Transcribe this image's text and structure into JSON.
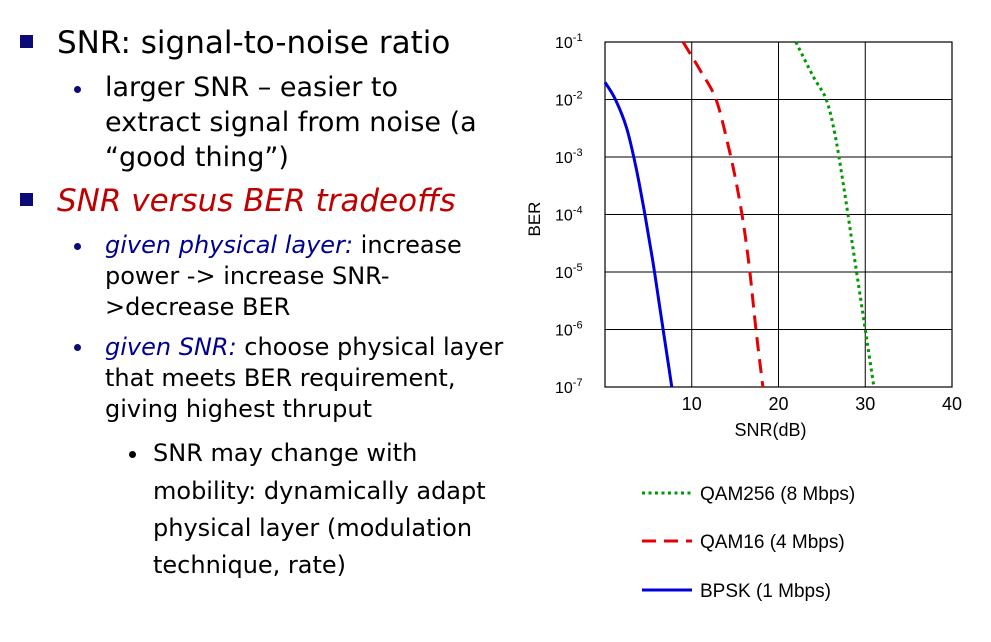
{
  "bullets": {
    "b1": {
      "text": "SNR: signal-to-noise ratio"
    },
    "b1_sub": {
      "line1": "larger SNR – easier to",
      "line2": "extract signal from noise (a",
      "line3": "“good thing”)"
    },
    "b2": {
      "text": "SNR versus BER tradeoffs"
    },
    "b2_sub1": {
      "lead": "given physical layer:",
      "line1_rest": " increase",
      "line2": "power -> increase SNR-",
      "line3": ">decrease BER"
    },
    "b2_sub2": {
      "lead": "given SNR:",
      "line1_rest": " choose physical layer",
      "line2": "that meets BER requirement,",
      "line3": "giving highest thruput"
    },
    "b2_sub2_sub": {
      "line1": "SNR may change with",
      "line2": "mobility: dynamically adapt",
      "line3": "physical layer (modulation",
      "line4": "technique, rate)"
    }
  },
  "chart_data": {
    "type": "line",
    "title": "",
    "xlabel": "SNR(dB)",
    "ylabel": "BER",
    "x_ticks": [
      "10",
      "20",
      "30",
      "40"
    ],
    "y_ticks": [
      {
        "base": "10",
        "exp": "-1"
      },
      {
        "base": "10",
        "exp": "-2"
      },
      {
        "base": "10",
        "exp": "-3"
      },
      {
        "base": "10",
        "exp": "-4"
      },
      {
        "base": "10",
        "exp": "-5"
      },
      {
        "base": "10",
        "exp": "-6"
      },
      {
        "base": "10",
        "exp": "-7"
      }
    ],
    "xlim": [
      0,
      40
    ],
    "ylim_log10": [
      -7,
      -1
    ],
    "grid": true,
    "legend_position": "bottom",
    "series": [
      {
        "name": "QAM256 (8 Mbps)",
        "color": "#009900",
        "style": "dotted",
        "points": [
          [
            22,
            -1.0
          ],
          [
            24,
            -1.6
          ],
          [
            25.5,
            -2.0
          ],
          [
            26.5,
            -2.6
          ],
          [
            27.5,
            -3.5
          ],
          [
            28.5,
            -4.5
          ],
          [
            29.5,
            -5.5
          ],
          [
            30.3,
            -6.3
          ],
          [
            31,
            -7.0
          ]
        ]
      },
      {
        "name": "QAM16 (4 Mbps)",
        "color": "#e60000",
        "style": "dashed",
        "points": [
          [
            9,
            -1.0
          ],
          [
            11,
            -1.5
          ],
          [
            12.8,
            -2.0
          ],
          [
            14.2,
            -2.8
          ],
          [
            15.2,
            -3.5
          ],
          [
            16,
            -4.2
          ],
          [
            16.7,
            -5.0
          ],
          [
            17.4,
            -6.0
          ],
          [
            18.2,
            -7.0
          ]
        ]
      },
      {
        "name": "BPSK (1 Mbps)",
        "color": "#0000dd",
        "style": "solid",
        "points": [
          [
            0,
            -1.7
          ],
          [
            1.2,
            -2.0
          ],
          [
            2.5,
            -2.5
          ],
          [
            3.6,
            -3.2
          ],
          [
            4.6,
            -4.0
          ],
          [
            5.5,
            -4.8
          ],
          [
            6.3,
            -5.6
          ],
          [
            7,
            -6.3
          ],
          [
            7.7,
            -7.0
          ]
        ]
      }
    ]
  }
}
